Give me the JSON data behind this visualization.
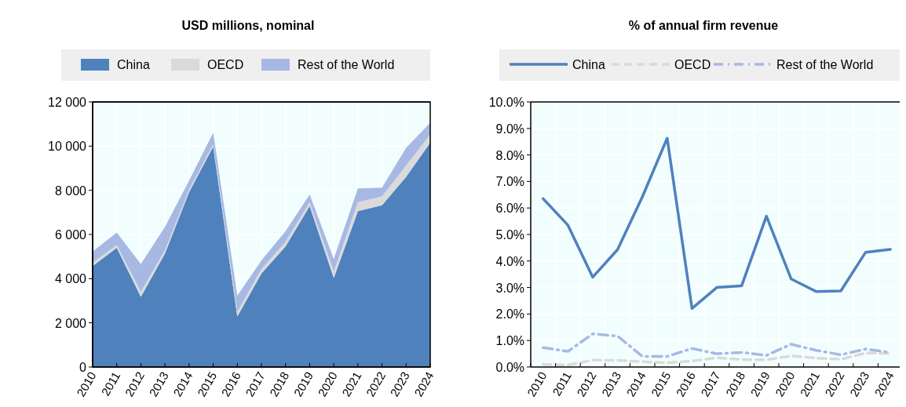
{
  "chart_data": [
    {
      "type": "area",
      "title": "USD millions, nominal",
      "stacked": true,
      "legend": "top",
      "grid": true,
      "categories": [
        "2010",
        "2011",
        "2012",
        "2013",
        "2014",
        "2015",
        "2016",
        "2017",
        "2018",
        "2019",
        "2020",
        "2021",
        "2022",
        "2023",
        "2024"
      ],
      "ylim": [
        0,
        12000
      ],
      "yticks": [
        0,
        {
          "value": 2000,
          "label": "2 000"
        },
        {
          "value": 4000,
          "label": "4 000"
        },
        {
          "value": 6000,
          "label": "6 000"
        },
        {
          "value": 8000,
          "label": "8 000"
        },
        {
          "value": 10000,
          "label": "10 000"
        },
        {
          "value": 12000,
          "label": "12 000"
        }
      ],
      "series": [
        {
          "name": "China",
          "color": "#4f81bd",
          "values": [
            4570,
            5400,
            3180,
            5140,
            7920,
            9980,
            2290,
            4230,
            5460,
            7290,
            4030,
            7060,
            7320,
            8610,
            10150
          ]
        },
        {
          "name": "OECD",
          "color": "#dadada",
          "values": [
            150,
            120,
            230,
            150,
            110,
            110,
            200,
            200,
            210,
            170,
            290,
            400,
            400,
            510,
            380
          ]
        },
        {
          "name": "Rest of the World",
          "color": "#a7b9e3",
          "values": [
            510,
            570,
            1250,
            1060,
            410,
            520,
            740,
            400,
            480,
            350,
            570,
            630,
            400,
            800,
            530
          ]
        }
      ]
    },
    {
      "type": "line",
      "title": "% of annual firm revenue",
      "legend": "top",
      "grid": true,
      "categories": [
        "2010",
        "2011",
        "2012",
        "2013",
        "2014",
        "2015",
        "2016",
        "2017",
        "2018",
        "2019",
        "2020",
        "2021",
        "2022",
        "2023",
        "2024"
      ],
      "ylim": [
        0,
        10
      ],
      "yticks": [
        {
          "value": 0,
          "label": "0.0%"
        },
        {
          "value": 1,
          "label": "1.0%"
        },
        {
          "value": 2,
          "label": "2.0%"
        },
        {
          "value": 3,
          "label": "3.0%"
        },
        {
          "value": 4,
          "label": "4.0%"
        },
        {
          "value": 5,
          "label": "5.0%"
        },
        {
          "value": 6,
          "label": "6.0%"
        },
        {
          "value": 7,
          "label": "7.0%"
        },
        {
          "value": 8,
          "label": "8.0%"
        },
        {
          "value": 9,
          "label": "9.0%"
        },
        {
          "value": 10,
          "label": "10.0%"
        }
      ],
      "series": [
        {
          "name": "China",
          "color": "#4f81bd",
          "line_style": "solid",
          "values": [
            6.35,
            5.35,
            3.39,
            4.43,
            6.42,
            8.63,
            2.21,
            3.0,
            3.06,
            5.69,
            3.32,
            2.85,
            2.87,
            4.33,
            4.44
          ]
        },
        {
          "name": "OECD",
          "color": "#dadada",
          "line_style": "dashed",
          "values": [
            0.1,
            0.07,
            0.26,
            0.25,
            0.2,
            0.16,
            0.22,
            0.35,
            0.28,
            0.27,
            0.42,
            0.34,
            0.29,
            0.53,
            0.51
          ]
        },
        {
          "name": "Rest of the World",
          "color": "#a7b9e3",
          "line_style": "dashdot",
          "values": [
            0.73,
            0.59,
            1.25,
            1.17,
            0.4,
            0.4,
            0.7,
            0.5,
            0.55,
            0.44,
            0.86,
            0.63,
            0.46,
            0.68,
            0.55
          ]
        }
      ]
    }
  ]
}
